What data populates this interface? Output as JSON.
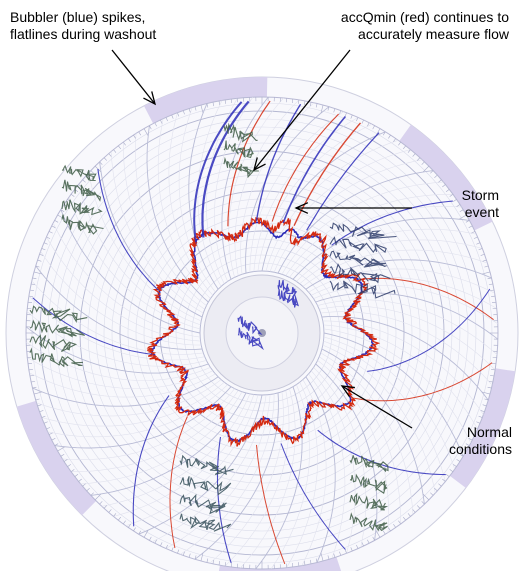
{
  "chart_data": {
    "type": "line",
    "chart_style": "circular recorder chart (polar)",
    "title": "",
    "series": [
      {
        "name": "Bubbler",
        "color": "#2b2bb8"
      },
      {
        "name": "accQmin",
        "color": "#d42a10"
      }
    ],
    "annotations": [
      {
        "id": "bubbler",
        "lines": [
          "Bubbler (blue) spikes,",
          "flatlines during washout"
        ]
      },
      {
        "id": "accqmin",
        "lines": [
          "accQmin (red) continues to",
          "accurately measure flow"
        ]
      },
      {
        "id": "storm",
        "lines": [
          "Storm",
          "event"
        ]
      },
      {
        "id": "normal",
        "lines": [
          "Normal",
          "conditions"
        ]
      }
    ],
    "grid": true,
    "legend": "none"
  }
}
